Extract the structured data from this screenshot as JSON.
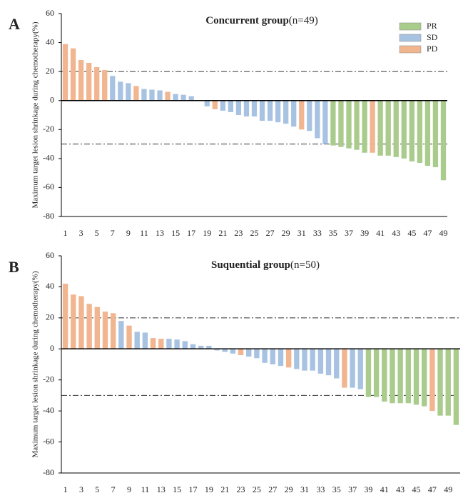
{
  "chart_data": [
    {
      "type": "bar",
      "panel_label": "A",
      "title": "Concurrent group",
      "subtitle": "(n=49)",
      "y_label": "Maximum target lesion shrinkage during chemotherapy(%)",
      "ylim": [
        -80,
        60
      ],
      "yticks": [
        -80,
        -60,
        -40,
        -20,
        0,
        20,
        40,
        60
      ],
      "reference_lines": [
        20,
        -30
      ],
      "categories": [
        "1",
        null,
        "3",
        null,
        "5",
        null,
        "7",
        null,
        "9",
        null,
        "11",
        null,
        "13",
        null,
        "15",
        null,
        "17",
        null,
        "19",
        null,
        "21",
        null,
        "23",
        null,
        "25",
        null,
        "27",
        null,
        "29",
        null,
        "31",
        null,
        "33",
        null,
        "35",
        null,
        "37",
        null,
        "39",
        null,
        "41",
        null,
        "43",
        null,
        "45",
        null,
        "47",
        null,
        "49"
      ],
      "series": [
        {
          "name": "PR",
          "color": "#a9cb8b",
          "values": [
            null,
            null,
            null,
            null,
            null,
            null,
            null,
            null,
            null,
            null,
            null,
            null,
            null,
            null,
            null,
            null,
            null,
            null,
            null,
            null,
            null,
            null,
            null,
            null,
            null,
            null,
            null,
            null,
            null,
            null,
            null,
            null,
            null,
            null,
            -31,
            -32,
            -33,
            -34,
            -36,
            null,
            -38,
            -38,
            -39,
            -40,
            -42,
            -43,
            -45,
            -46,
            -55
          ]
        },
        {
          "name": "SD",
          "color": "#a8c3e2",
          "values": [
            null,
            null,
            null,
            null,
            null,
            null,
            17,
            13,
            12,
            null,
            8,
            7.5,
            7,
            null,
            4.5,
            4,
            3,
            null,
            -4,
            null,
            -7,
            -8,
            -10,
            -11,
            -11,
            -14,
            -14,
            -15,
            -16,
            -18,
            null,
            -21,
            -26,
            -30,
            null,
            null,
            null,
            null,
            null,
            null,
            null,
            null,
            null,
            null,
            null,
            null,
            null,
            null,
            null
          ]
        },
        {
          "name": "PD",
          "color": "#f1b58f",
          "values": [
            39,
            36,
            28,
            26,
            23,
            21,
            null,
            null,
            null,
            10,
            null,
            null,
            null,
            6,
            null,
            null,
            null,
            null,
            null,
            -6,
            null,
            null,
            null,
            null,
            null,
            null,
            null,
            null,
            null,
            null,
            -20,
            null,
            null,
            null,
            null,
            null,
            null,
            null,
            null,
            -36,
            null,
            null,
            null,
            null,
            null,
            null,
            null,
            null,
            null
          ]
        }
      ]
    },
    {
      "type": "bar",
      "panel_label": "B",
      "title": "Suquential  group",
      "subtitle": "(n=50)",
      "y_label": "Maximum target lesion shrinkage during chemotherapy(%)",
      "ylim": [
        -80,
        60
      ],
      "yticks": [
        -80,
        -60,
        -40,
        -20,
        0,
        20,
        40,
        60
      ],
      "reference_lines": [
        20,
        -30
      ],
      "categories": [
        "1",
        null,
        "3",
        null,
        "5",
        null,
        "7",
        null,
        "9",
        null,
        "11",
        null,
        "13",
        null,
        "15",
        null,
        "17",
        null,
        "19",
        null,
        "21",
        null,
        "23",
        null,
        "25",
        null,
        "27",
        null,
        "29",
        null,
        "31",
        null,
        "33",
        null,
        "35",
        null,
        "37",
        null,
        "39",
        null,
        "41",
        null,
        "43",
        null,
        "45",
        null,
        "47",
        null,
        "49",
        null
      ],
      "series": [
        {
          "color": "#a9cb8b",
          "values": [
            null,
            null,
            null,
            null,
            null,
            null,
            null,
            null,
            null,
            null,
            null,
            null,
            null,
            null,
            null,
            null,
            null,
            null,
            null,
            null,
            null,
            null,
            null,
            null,
            null,
            null,
            null,
            null,
            null,
            null,
            null,
            null,
            null,
            null,
            null,
            null,
            null,
            null,
            -31,
            -31,
            -34,
            -35,
            -35,
            -35,
            -36,
            -37,
            null,
            -43,
            -43,
            -49
          ]
        },
        {
          "color": "#a8c3e2",
          "values": [
            null,
            null,
            null,
            null,
            null,
            null,
            null,
            18,
            null,
            11,
            10.5,
            null,
            null,
            6.5,
            6,
            5,
            3,
            2,
            2,
            -1,
            -2,
            -3,
            null,
            -5,
            -6,
            -9,
            -10,
            -11,
            null,
            -13,
            -14,
            -14,
            -16,
            -17,
            -19,
            null,
            -25,
            -26,
            null,
            null,
            null,
            null,
            null,
            null,
            null,
            null,
            null,
            null,
            null,
            null
          ]
        },
        {
          "color": "#f1b58f",
          "values": [
            42,
            35,
            34,
            29,
            27,
            24,
            23,
            null,
            15,
            null,
            null,
            7,
            6.5,
            null,
            null,
            null,
            null,
            null,
            null,
            null,
            null,
            null,
            -4,
            null,
            null,
            null,
            null,
            null,
            -12,
            null,
            null,
            null,
            null,
            null,
            null,
            -25,
            null,
            null,
            null,
            null,
            null,
            null,
            null,
            null,
            null,
            null,
            -40,
            null,
            null,
            null
          ]
        }
      ]
    }
  ]
}
